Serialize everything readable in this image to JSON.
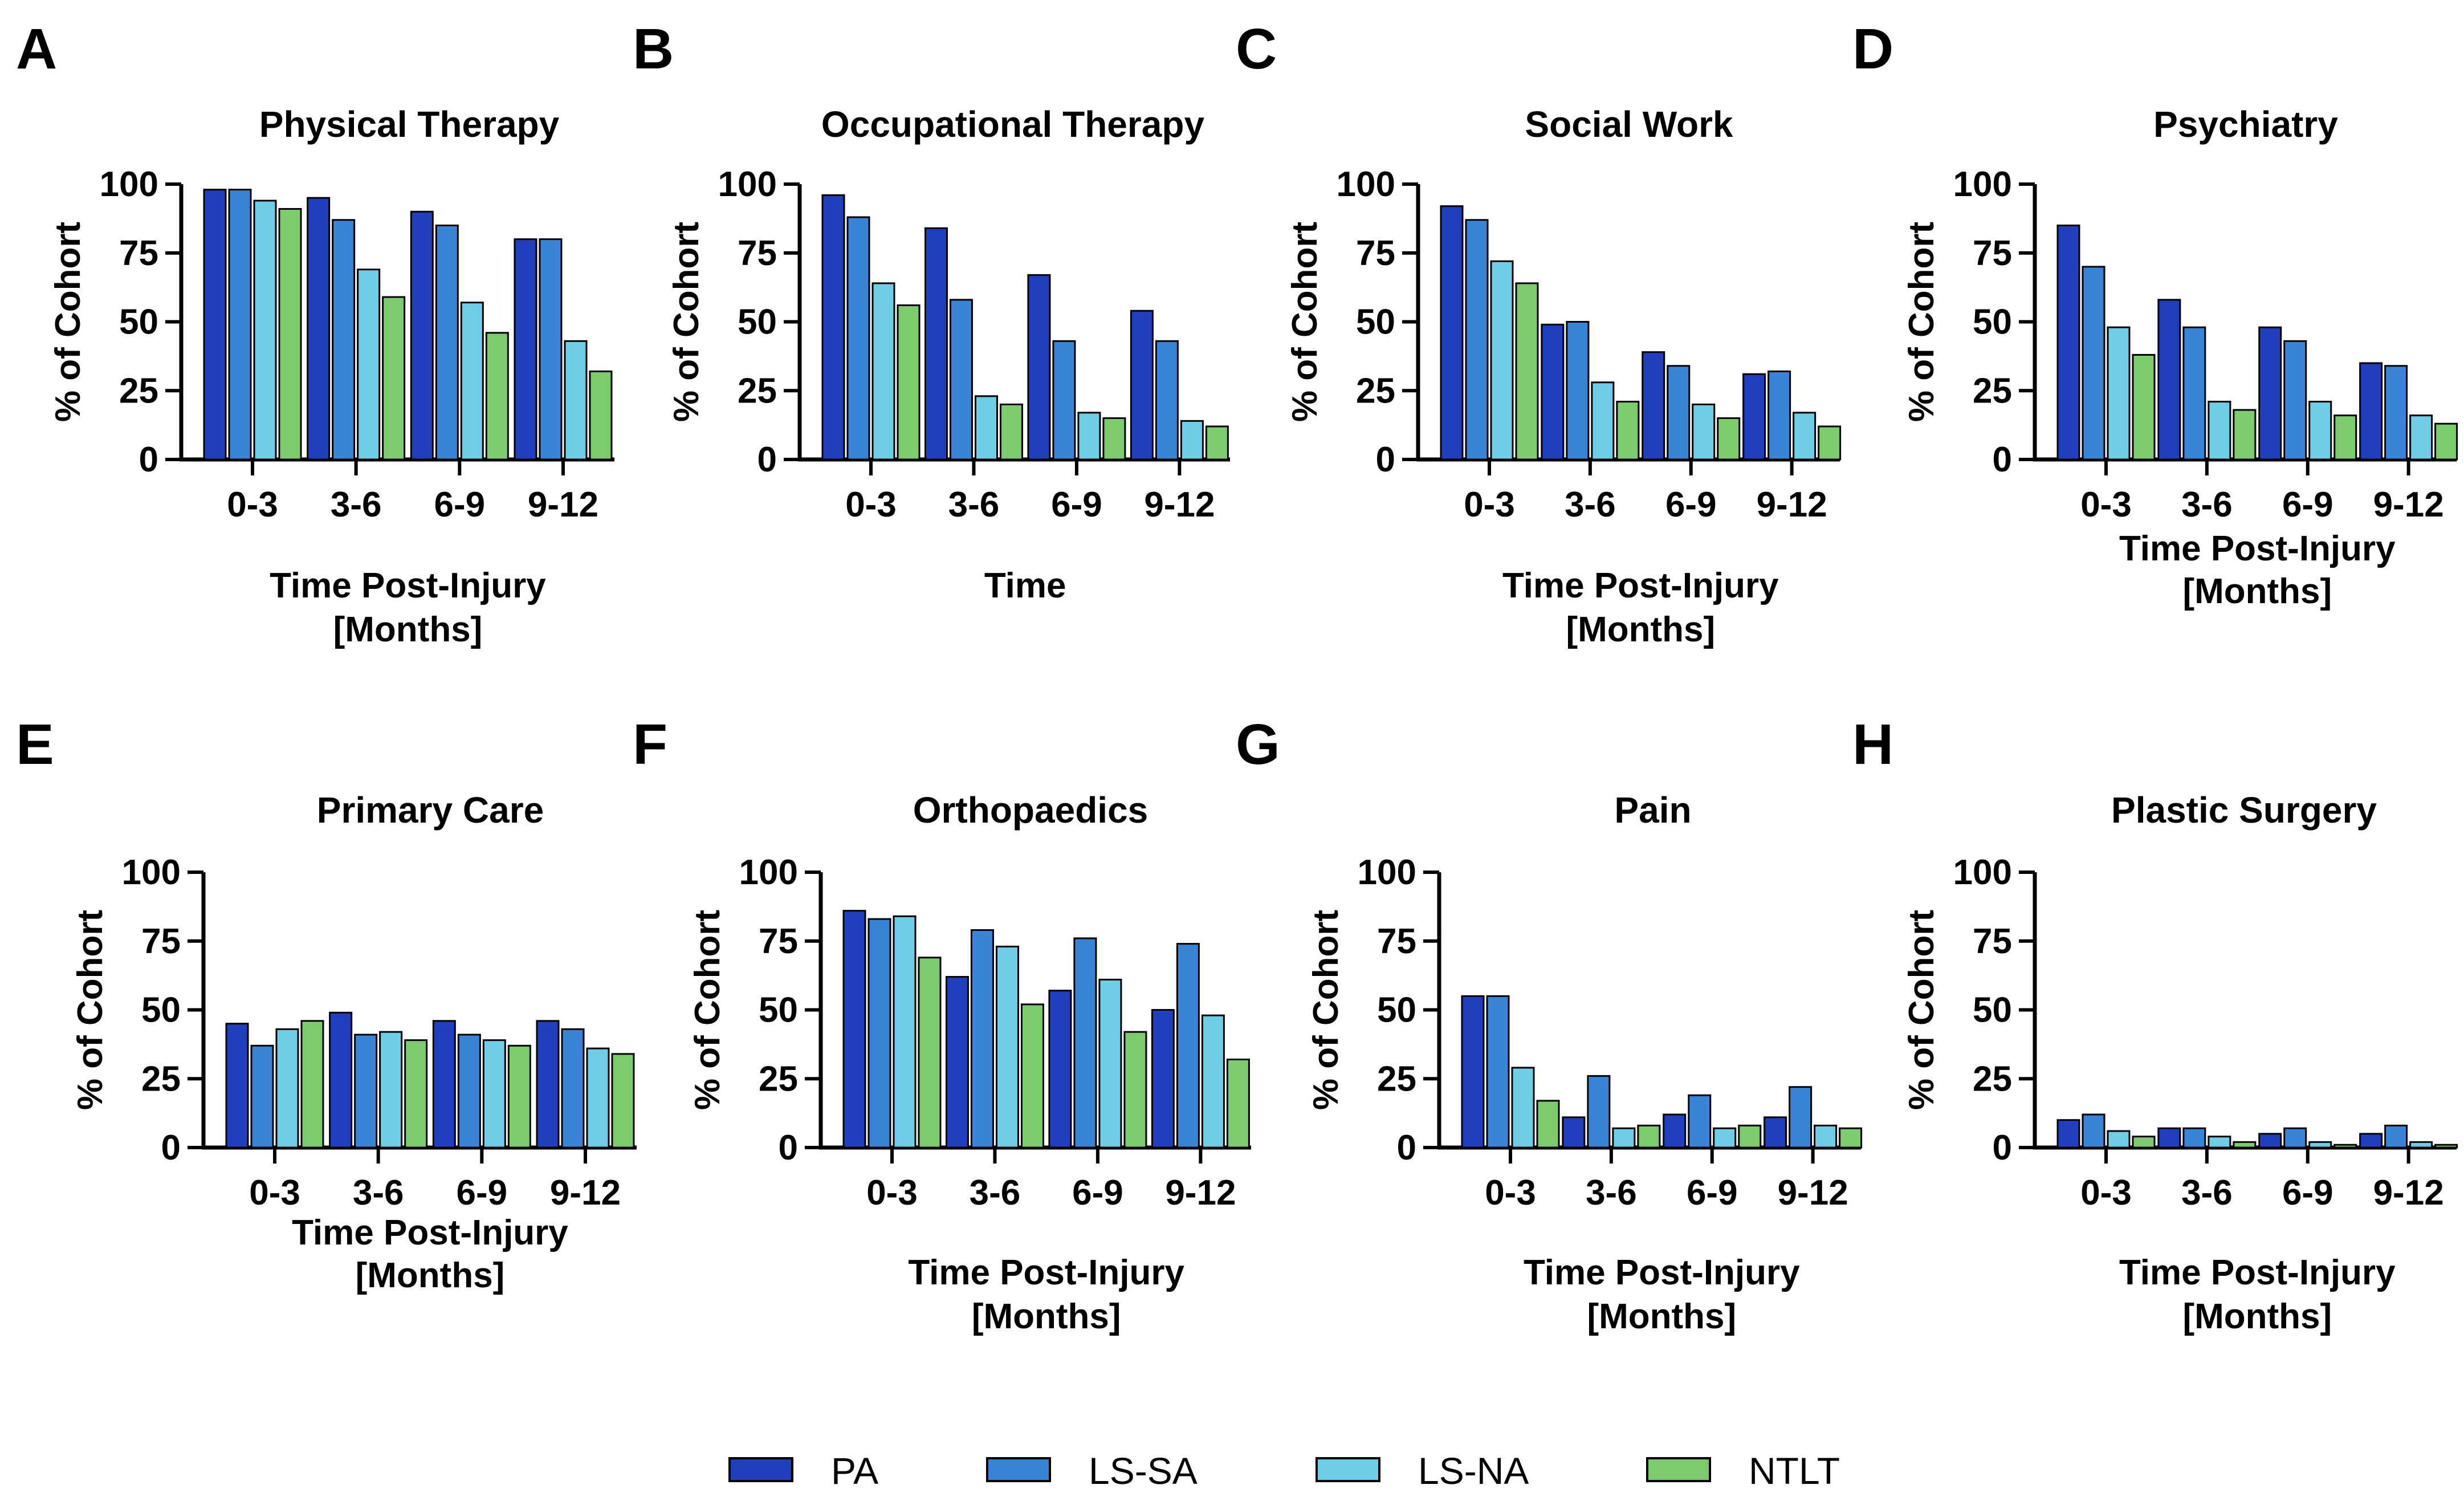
{
  "colors": {
    "PA": "#1f3fbf",
    "LS-SA": "#3a84d8",
    "LS-NA": "#6fcde6",
    "NTLT": "#7ccb6e",
    "axis": "#000000"
  },
  "legend": {
    "items": [
      {
        "key": "PA",
        "label": "PA"
      },
      {
        "key": "LS-SA",
        "label": "LS-SA"
      },
      {
        "key": "LS-NA",
        "label": "LS-NA"
      },
      {
        "key": "NTLT",
        "label": "NTLT"
      }
    ]
  },
  "chart_data": [
    {
      "panel": "A",
      "type": "bar",
      "title": "Physical Therapy",
      "categories": [
        "0-3",
        "3-6",
        "6-9",
        "9-12"
      ],
      "ylabel": "% of Cohort",
      "xlabel": [
        "Time Post-Injury",
        "[Months]"
      ],
      "ylim": [
        0,
        100
      ],
      "yticks": [
        0,
        25,
        50,
        75,
        100
      ],
      "series": [
        {
          "name": "PA",
          "values": [
            98,
            95,
            90,
            80
          ]
        },
        {
          "name": "LS-SA",
          "values": [
            98,
            87,
            85,
            80
          ]
        },
        {
          "name": "LS-NA",
          "values": [
            94,
            69,
            57,
            43
          ]
        },
        {
          "name": "NTLT",
          "values": [
            91,
            59,
            46,
            32
          ]
        }
      ]
    },
    {
      "panel": "B",
      "type": "bar",
      "title": "Occupational Therapy",
      "categories": [
        "0-3",
        "3-6",
        "6-9",
        "9-12"
      ],
      "ylabel": "% of Cohort",
      "xlabel": [
        "Time"
      ],
      "ylim": [
        0,
        100
      ],
      "yticks": [
        0,
        25,
        50,
        75,
        100
      ],
      "series": [
        {
          "name": "PA",
          "values": [
            96,
            84,
            67,
            54
          ]
        },
        {
          "name": "LS-SA",
          "values": [
            88,
            58,
            43,
            43
          ]
        },
        {
          "name": "LS-NA",
          "values": [
            64,
            23,
            17,
            14
          ]
        },
        {
          "name": "NTLT",
          "values": [
            56,
            20,
            15,
            12
          ]
        }
      ]
    },
    {
      "panel": "C",
      "type": "bar",
      "title": "Social Work",
      "categories": [
        "0-3",
        "3-6",
        "6-9",
        "9-12"
      ],
      "ylabel": "% of Cohort",
      "xlabel": [
        "Time Post-Injury",
        "[Months]"
      ],
      "ylim": [
        0,
        100
      ],
      "yticks": [
        0,
        25,
        50,
        75,
        100
      ],
      "series": [
        {
          "name": "PA",
          "values": [
            92,
            49,
            39,
            31
          ]
        },
        {
          "name": "LS-SA",
          "values": [
            87,
            50,
            34,
            32
          ]
        },
        {
          "name": "LS-NA",
          "values": [
            72,
            28,
            20,
            17
          ]
        },
        {
          "name": "NTLT",
          "values": [
            64,
            21,
            15,
            12
          ]
        }
      ]
    },
    {
      "panel": "D",
      "type": "bar",
      "title": "Psychiatry",
      "categories": [
        "0-3",
        "3-6",
        "6-9",
        "9-12"
      ],
      "ylabel": "% of Cohort",
      "xlabel": [
        "Time Post-Injury",
        "[Months]"
      ],
      "ylim": [
        0,
        100
      ],
      "yticks": [
        0,
        25,
        50,
        75,
        100
      ],
      "series": [
        {
          "name": "PA",
          "values": [
            85,
            58,
            48,
            35
          ]
        },
        {
          "name": "LS-SA",
          "values": [
            70,
            48,
            43,
            34
          ]
        },
        {
          "name": "LS-NA",
          "values": [
            48,
            21,
            21,
            16
          ]
        },
        {
          "name": "NTLT",
          "values": [
            38,
            18,
            16,
            13
          ]
        }
      ]
    },
    {
      "panel": "E",
      "type": "bar",
      "title": "Primary Care",
      "categories": [
        "0-3",
        "3-6",
        "6-9",
        "9-12"
      ],
      "ylabel": "% of Cohort",
      "xlabel": [
        "Time Post-Injury",
        "[Months]"
      ],
      "ylim": [
        0,
        100
      ],
      "yticks": [
        0,
        25,
        50,
        75,
        100
      ],
      "series": [
        {
          "name": "PA",
          "values": [
            45,
            49,
            46,
            46
          ]
        },
        {
          "name": "LS-SA",
          "values": [
            37,
            41,
            41,
            43
          ]
        },
        {
          "name": "LS-NA",
          "values": [
            43,
            42,
            39,
            36
          ]
        },
        {
          "name": "NTLT",
          "values": [
            46,
            39,
            37,
            34
          ]
        }
      ]
    },
    {
      "panel": "F",
      "type": "bar",
      "title": "Orthopaedics",
      "categories": [
        "0-3",
        "3-6",
        "6-9",
        "9-12"
      ],
      "ylabel": "% of Cohort",
      "xlabel": [
        "Time Post-Injury",
        "[Months]"
      ],
      "ylim": [
        0,
        100
      ],
      "yticks": [
        0,
        25,
        50,
        75,
        100
      ],
      "series": [
        {
          "name": "PA",
          "values": [
            86,
            62,
            57,
            50
          ]
        },
        {
          "name": "LS-SA",
          "values": [
            83,
            79,
            76,
            74
          ]
        },
        {
          "name": "LS-NA",
          "values": [
            84,
            73,
            61,
            48
          ]
        },
        {
          "name": "NTLT",
          "values": [
            69,
            52,
            42,
            32
          ]
        }
      ]
    },
    {
      "panel": "G",
      "type": "bar",
      "title": "Pain",
      "categories": [
        "0-3",
        "3-6",
        "6-9",
        "9-12"
      ],
      "ylabel": "% of Cohort",
      "xlabel": [
        "Time Post-Injury",
        "[Months]"
      ],
      "ylim": [
        0,
        100
      ],
      "yticks": [
        0,
        25,
        50,
        75,
        100
      ],
      "series": [
        {
          "name": "PA",
          "values": [
            55,
            11,
            12,
            11
          ]
        },
        {
          "name": "LS-SA",
          "values": [
            55,
            26,
            19,
            22
          ]
        },
        {
          "name": "LS-NA",
          "values": [
            29,
            7,
            7,
            8
          ]
        },
        {
          "name": "NTLT",
          "values": [
            17,
            8,
            8,
            7
          ]
        }
      ]
    },
    {
      "panel": "H",
      "type": "bar",
      "title": "Plastic Surgery",
      "categories": [
        "0-3",
        "3-6",
        "6-9",
        "9-12"
      ],
      "ylabel": "% of Cohort",
      "xlabel": [
        "Time Post-Injury",
        "[Months]"
      ],
      "ylim": [
        0,
        100
      ],
      "yticks": [
        0,
        25,
        50,
        75,
        100
      ],
      "series": [
        {
          "name": "PA",
          "values": [
            10,
            7,
            5,
            5
          ]
        },
        {
          "name": "LS-SA",
          "values": [
            12,
            7,
            7,
            8
          ]
        },
        {
          "name": "LS-NA",
          "values": [
            6,
            4,
            2,
            2
          ]
        },
        {
          "name": "NTLT",
          "values": [
            4,
            2,
            1,
            1
          ]
        }
      ]
    }
  ]
}
